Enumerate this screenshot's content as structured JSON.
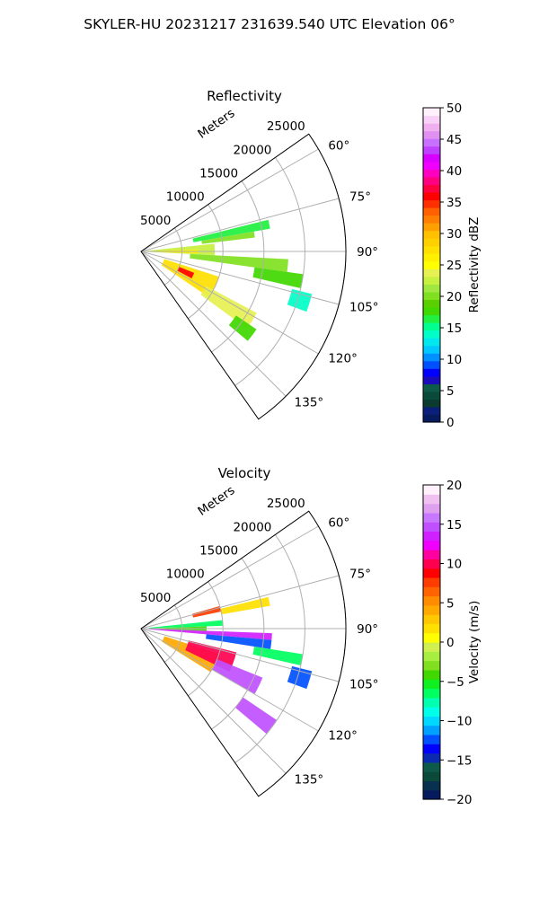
{
  "figure": {
    "title": "SKYLER-HU  20231217  231639.540 UTC Elevation 06°"
  },
  "chart_data": [
    {
      "type": "heatmap",
      "projection": "polar-sector",
      "title": "Reflectivity",
      "range_label": "Meters",
      "range_ticks": [
        5000,
        10000,
        15000,
        20000,
        25000
      ],
      "range_tick_labels": [
        "5000",
        "10000",
        "15000",
        "20000",
        "25000"
      ],
      "range_max": 25000,
      "azimuth_range_deg": [
        55,
        145
      ],
      "azimuth_ticks": [
        60,
        75,
        90,
        105,
        120,
        135
      ],
      "azimuth_tick_labels": [
        "60°",
        "75°",
        "90°",
        "105°",
        "120°",
        "135°"
      ],
      "grid": true,
      "colorbar": {
        "label": "Reflectivity dBZ",
        "min": 0,
        "max": 50,
        "ticks": [
          0,
          5,
          10,
          15,
          20,
          25,
          30,
          35,
          40,
          45,
          50
        ],
        "tick_labels": [
          "0",
          "5",
          "10",
          "15",
          "20",
          "25",
          "30",
          "35",
          "40",
          "45",
          "50"
        ],
        "colors": [
          "#061a5e",
          "#0a1f7a",
          "#0b3a2e",
          "#0a4a3a",
          "#0d5a4a",
          "#1a0bbb",
          "#0000ff",
          "#0050ff",
          "#0090ff",
          "#00c8ff",
          "#00e8ee",
          "#00ffc8",
          "#00ff90",
          "#20f040",
          "#40d800",
          "#5ad000",
          "#80e020",
          "#a0e840",
          "#c8f040",
          "#e6f050",
          "#ffff00",
          "#fff000",
          "#ffe000",
          "#ffd000",
          "#ffc000",
          "#ffa000",
          "#ff8000",
          "#ff6000",
          "#ff3000",
          "#ff0000",
          "#ff0040",
          "#ff0080",
          "#ff00c0",
          "#f000ff",
          "#d800ff",
          "#c040ff",
          "#c870ff",
          "#e090f0",
          "#f0b0f0",
          "#f8d0f8",
          "#fff0fc"
        ]
      },
      "echo_regions": [
        {
          "az": [
            76,
            80
          ],
          "r": [
            6500,
            16000
          ],
          "value": 16
        },
        {
          "az": [
            80,
            83
          ],
          "r": [
            7500,
            14000
          ],
          "value": 20
        },
        {
          "az": [
            84,
            93
          ],
          "r": [
            500,
            9000
          ],
          "value": 22
        },
        {
          "az": [
            88,
            92
          ],
          "r": [
            1500,
            7000
          ],
          "value": 26
        },
        {
          "az": [
            93,
            98
          ],
          "r": [
            6000,
            18000
          ],
          "value": 20
        },
        {
          "az": [
            98,
            103
          ],
          "r": [
            14000,
            20000
          ],
          "value": 18
        },
        {
          "az": [
            104,
            110
          ],
          "r": [
            19000,
            21500
          ],
          "value": 14
        },
        {
          "az": [
            108,
            124
          ],
          "r": [
            3000,
            10000
          ],
          "value": 27
        },
        {
          "az": [
            112,
            118
          ],
          "r": [
            5000,
            7000
          ],
          "value": 36
        },
        {
          "az": [
            118,
            126
          ],
          "r": [
            9000,
            16000
          ],
          "value": 24
        },
        {
          "az": [
            124,
            130
          ],
          "r": [
            14000,
            17000
          ],
          "value": 18
        }
      ]
    },
    {
      "type": "heatmap",
      "projection": "polar-sector",
      "title": "Velocity",
      "range_label": "Meters",
      "range_ticks": [
        5000,
        10000,
        15000,
        20000,
        25000
      ],
      "range_tick_labels": [
        "5000",
        "10000",
        "15000",
        "20000",
        "25000"
      ],
      "range_max": 25000,
      "azimuth_range_deg": [
        55,
        145
      ],
      "azimuth_ticks": [
        60,
        75,
        90,
        105,
        120,
        135
      ],
      "azimuth_tick_labels": [
        "60°",
        "75°",
        "90°",
        "105°",
        "120°",
        "135°"
      ],
      "grid": true,
      "colorbar": {
        "label": "Velocity (m/s)",
        "min": -20,
        "max": 20,
        "ticks": [
          -20,
          -15,
          -10,
          -5,
          0,
          5,
          10,
          15,
          20
        ],
        "tick_labels": [
          "−20",
          "−15",
          "−10",
          "−5",
          "0",
          "5",
          "10",
          "15",
          "20"
        ],
        "colors": [
          "#061a5e",
          "#0a3050",
          "#0b4a3a",
          "#0d5a4a",
          "#0a2ab0",
          "#0000ff",
          "#0050ff",
          "#00a0ff",
          "#00d8ff",
          "#00ffe8",
          "#00ffb0",
          "#00ff60",
          "#10f020",
          "#40d800",
          "#80e020",
          "#a8ee40",
          "#d0f050",
          "#ffff00",
          "#ffe000",
          "#ffc800",
          "#ffa800",
          "#ff8c00",
          "#ff6400",
          "#ff3c00",
          "#ff0000",
          "#ff0050",
          "#ff00a0",
          "#f000ff",
          "#d020ff",
          "#c050ff",
          "#c878ff",
          "#e0a0f0",
          "#f0c0f0",
          "#fff0fc"
        ]
      },
      "echo_regions": [
        {
          "az": [
            74,
            78
          ],
          "r": [
            6500,
            10000
          ],
          "value": 8
        },
        {
          "az": [
            76,
            80
          ],
          "r": [
            10000,
            16000
          ],
          "value": 2
        },
        {
          "az": [
            84,
            88
          ],
          "r": [
            1000,
            10000
          ],
          "value": -6
        },
        {
          "az": [
            88,
            92
          ],
          "r": [
            500,
            8000
          ],
          "value": -4
        },
        {
          "az": [
            92,
            95
          ],
          "r": [
            500,
            16000
          ],
          "value": 14
        },
        {
          "az": [
            95,
            99
          ],
          "r": [
            8000,
            16000
          ],
          "value": -12
        },
        {
          "az": [
            99,
            103
          ],
          "r": [
            14000,
            20000
          ],
          "value": -6
        },
        {
          "az": [
            104,
            110
          ],
          "r": [
            19000,
            21500
          ],
          "value": -12
        },
        {
          "az": [
            108,
            122
          ],
          "r": [
            3000,
            10000
          ],
          "value": 4
        },
        {
          "az": [
            104,
            116
          ],
          "r": [
            6000,
            12000
          ],
          "value": 10
        },
        {
          "az": [
            112,
            120
          ],
          "r": [
            10000,
            16000
          ],
          "value": 15
        },
        {
          "az": [
            124,
            130
          ],
          "r": [
            15000,
            20000
          ],
          "value": 15
        }
      ]
    }
  ]
}
